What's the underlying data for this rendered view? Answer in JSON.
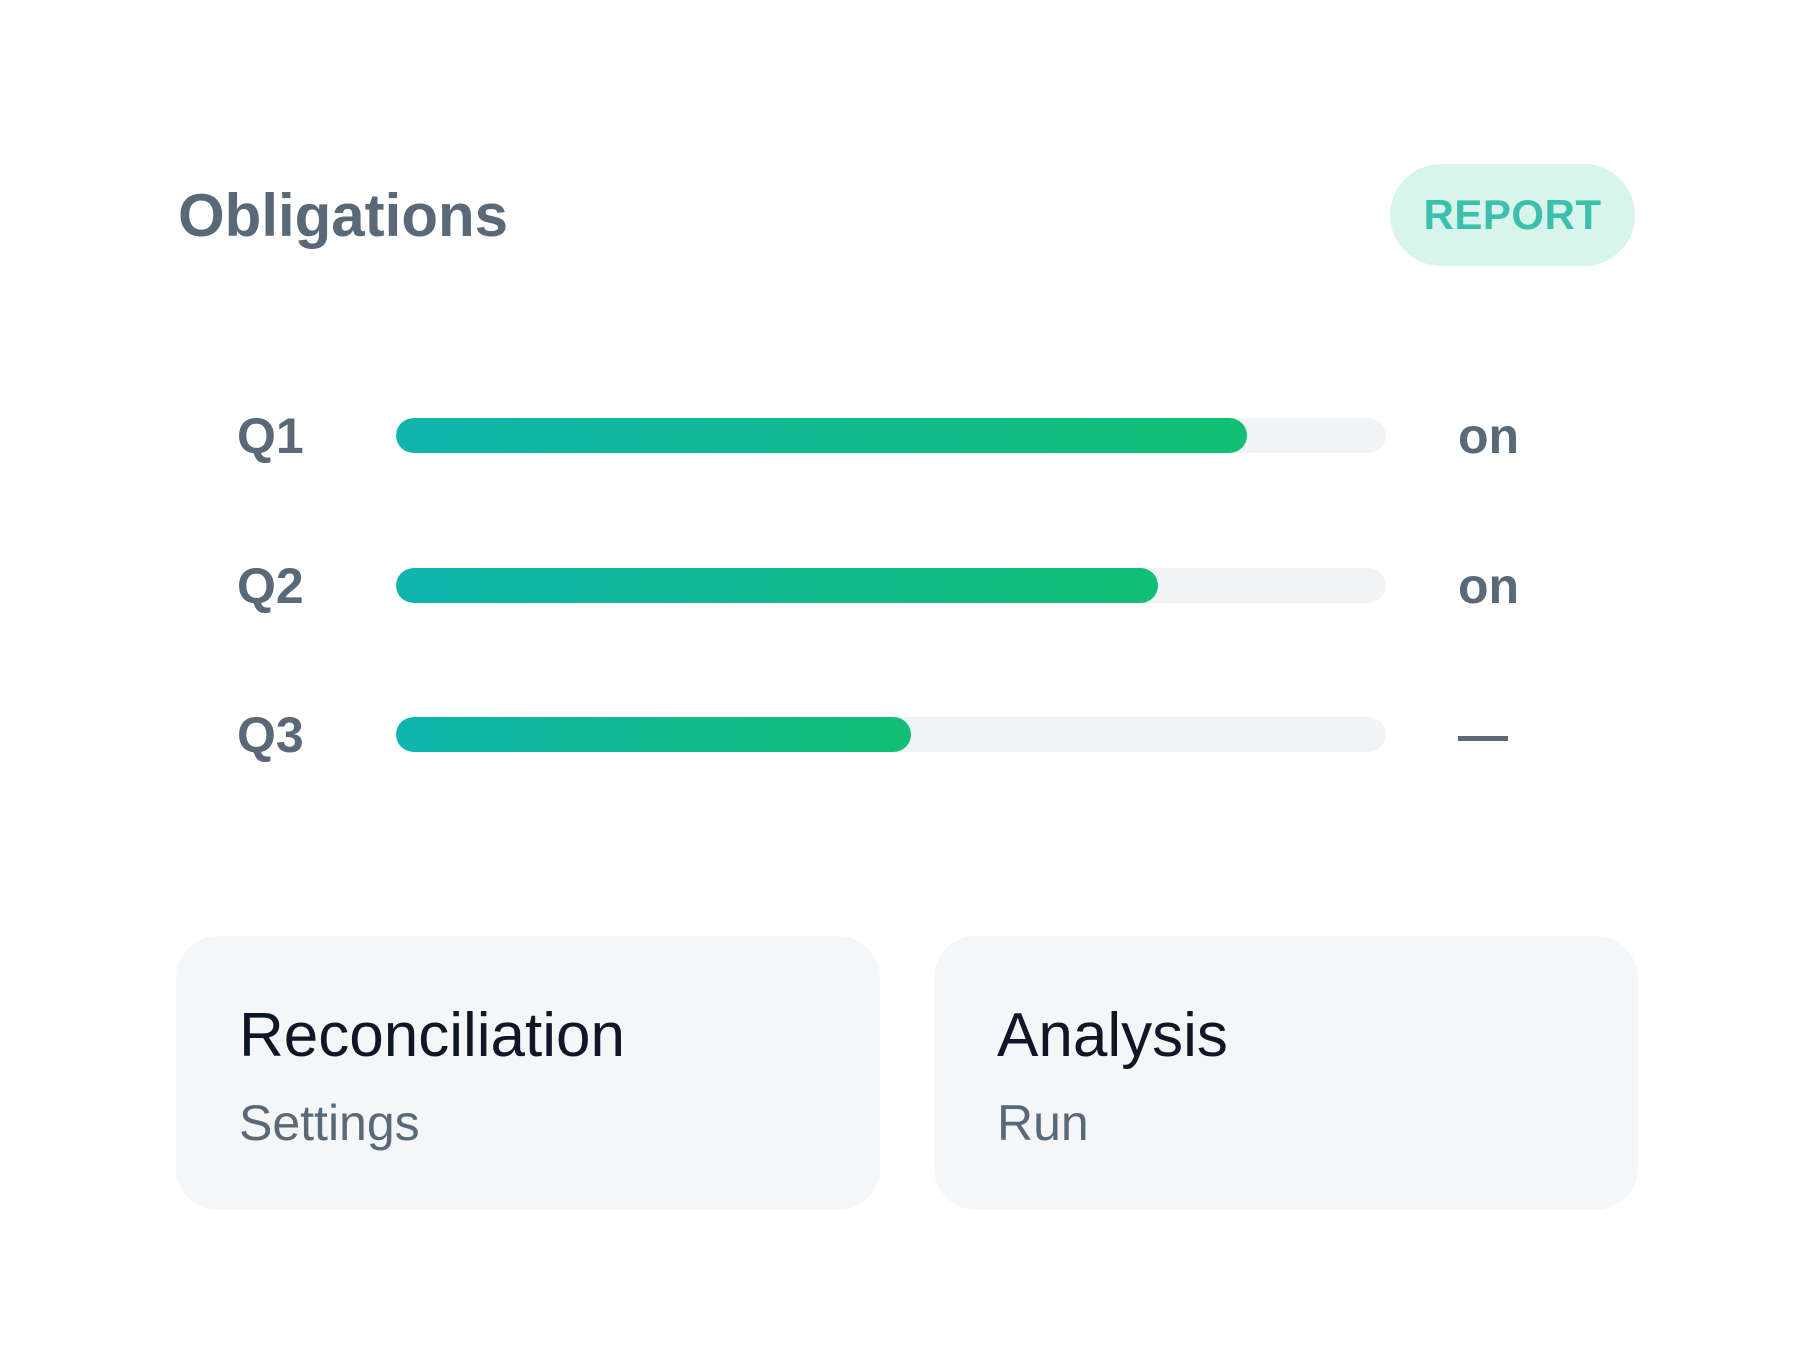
{
  "header": {
    "title": "Obligations",
    "report_button": "REPORT"
  },
  "progress": [
    {
      "label": "Q1",
      "value": 0.86,
      "status": "on"
    },
    {
      "label": "Q2",
      "value": 0.77,
      "status": "on"
    },
    {
      "label": "Q3",
      "value": 0.52,
      "status": "—"
    }
  ],
  "cards": [
    {
      "title": "Reconciliation",
      "subtitle": "Settings"
    },
    {
      "title": "Analysis",
      "subtitle": "Run"
    }
  ],
  "colors": {
    "accent_start": "#10b5ad",
    "accent_end": "#13bf74",
    "badge_bg": "#d8f5ec",
    "badge_text": "#3dbfae",
    "muted_text": "#5a6978",
    "track": "#f1f4f6",
    "card_bg": "#f4f6f8"
  }
}
